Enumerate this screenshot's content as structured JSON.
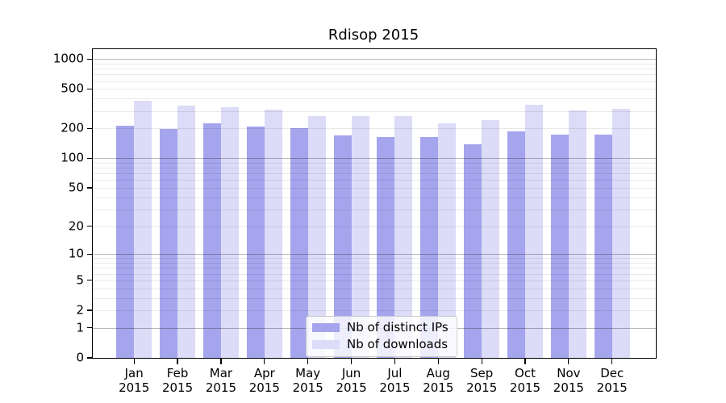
{
  "chart_data": {
    "type": "bar",
    "title": "Rdisop 2015",
    "categories": [
      "Jan",
      "Feb",
      "Mar",
      "Apr",
      "May",
      "Jun",
      "Jul",
      "Aug",
      "Sep",
      "Oct",
      "Nov",
      "Dec"
    ],
    "x_year": "2015",
    "series": [
      {
        "name": "Nb of distinct IPs",
        "color": "#a5a5ee",
        "values": [
          215,
          197,
          225,
          210,
          200,
          172,
          164,
          164,
          139,
          186,
          175,
          175
        ]
      },
      {
        "name": "Nb of downloads",
        "color": "#dcdcf8",
        "values": [
          383,
          340,
          330,
          310,
          268,
          268,
          266,
          224,
          243,
          349,
          306,
          315
        ]
      }
    ],
    "y_ticks": [
      0,
      1,
      2,
      5,
      10,
      20,
      50,
      100,
      200,
      500,
      1000
    ],
    "scale": "log1p",
    "ylim": [
      0,
      1259
    ],
    "grid": "on",
    "grid_minor_values": [
      2,
      3,
      4,
      5,
      6,
      7,
      8,
      9,
      20,
      30,
      40,
      50,
      60,
      70,
      80,
      90,
      200,
      300,
      400,
      500,
      600,
      700,
      800,
      900
    ],
    "grid_major_values": [
      1,
      10,
      100,
      1000
    ],
    "legend_position": "lower center"
  },
  "colors": {
    "grid_minor": "rgba(0,0,0,0.085)",
    "grid_major": "rgba(0,0,0,0.28)",
    "spine": "#000000",
    "background": "#ffffff"
  }
}
